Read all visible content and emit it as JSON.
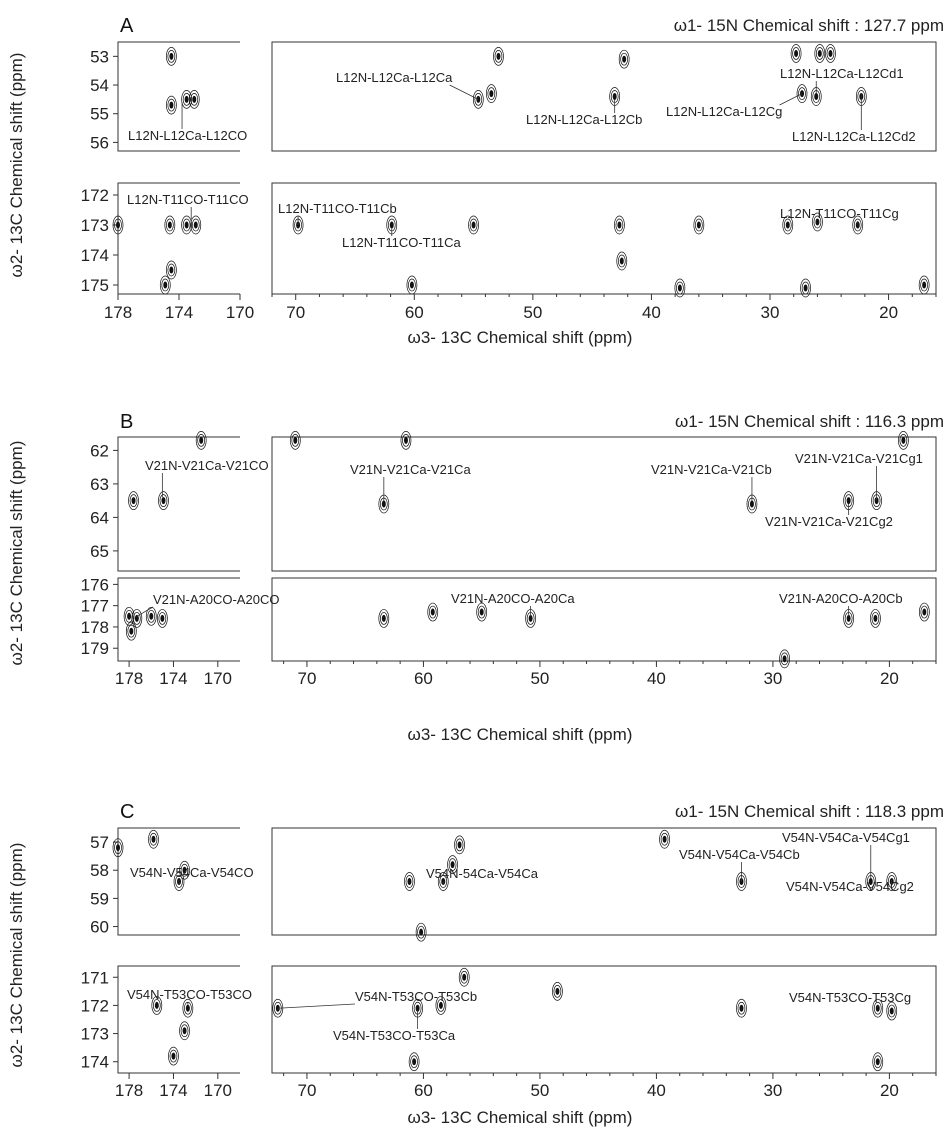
{
  "chart_data": [
    {
      "type": "contour",
      "panel": "A",
      "header": "ω1- 15N Chemical shift : 127.7 ppm",
      "xlabel": "ω3- 13C Chemical shift (ppm)",
      "ylabel": "ω2- 13C Chemical shift (ppm)",
      "x_left_range": [
        178,
        170
      ],
      "x_right_range": [
        72,
        16
      ],
      "x_left_ticks": [
        "178",
        "174",
        "170"
      ],
      "x_right_ticks": [
        "70",
        "60",
        "50",
        "40",
        "30",
        "20"
      ],
      "strips": [
        {
          "ylim": [
            52.5,
            56.3
          ],
          "yticks": [
            "53",
            "54",
            "55",
            "56"
          ],
          "peaks": [
            [
              174.5,
              53.0
            ],
            [
              174.5,
              54.7
            ],
            [
              173.5,
              54.5
            ],
            [
              173.0,
              54.5
            ],
            [
              52.9,
              53.0
            ],
            [
              42.3,
              53.1
            ],
            [
              27.8,
              52.9
            ],
            [
              25.8,
              52.9
            ],
            [
              24.9,
              52.9
            ],
            [
              54.6,
              54.5
            ],
            [
              43.1,
              54.4
            ],
            [
              26.1,
              54.4
            ],
            [
              27.3,
              54.3
            ],
            [
              22.3,
              54.4
            ],
            [
              53.5,
              54.3
            ]
          ],
          "annotations": [
            {
              "text": "L12N-L12Ca-L12CO",
              "x": 173.8,
              "y": 54.6
            },
            {
              "text": "L12N-L12Ca-L12Ca",
              "x": 54.6,
              "y": 54.5
            },
            {
              "text": "L12N-L12Ca-L12Cb",
              "x": 43.1,
              "y": 54.5
            },
            {
              "text": "L12N-L12Ca-L12Cg",
              "x": 27.3,
              "y": 54.3
            },
            {
              "text": "L12N-L12Ca-L12Cd1",
              "x": 26.1,
              "y": 54.3
            },
            {
              "text": "L12N-L12Ca-L12Cd2",
              "x": 22.3,
              "y": 54.3
            }
          ]
        },
        {
          "ylim": [
            171.6,
            175.3
          ],
          "yticks": [
            "172",
            "173",
            "174",
            "175"
          ],
          "peaks": [
            [
              173.5,
              173.0
            ],
            [
              172.9,
              173.0
            ],
            [
              174.6,
              173.0
            ],
            [
              174.5,
              174.5
            ],
            [
              174.9,
              175.0
            ],
            [
              178.0,
              173.0
            ],
            [
              69.8,
              173.0
            ],
            [
              61.9,
              173.0
            ],
            [
              55.0,
              173.0
            ],
            [
              36.0,
              173.0
            ],
            [
              26.0,
              172.9
            ],
            [
              22.6,
              173.0
            ],
            [
              28.5,
              173.0
            ],
            [
              42.7,
              173.0
            ],
            [
              60.2,
              175.0
            ],
            [
              27.0,
              175.1
            ],
            [
              17.0,
              175.0
            ],
            [
              37.6,
              175.1
            ],
            [
              42.5,
              174.2
            ]
          ],
          "annotations": [
            {
              "text": "L12N-T11CO-T11CO",
              "x": 173.2,
              "y": 172.8
            },
            {
              "text": "L12N-T11CO-T11Cb",
              "x": 69.8,
              "y": 173.0
            },
            {
              "text": "L12N-T11CO-T11Ca",
              "x": 61.9,
              "y": 173.1
            },
            {
              "text": "L12N-T11CO-T11Cg",
              "x": 22.6,
              "y": 173.0
            }
          ]
        }
      ]
    },
    {
      "type": "contour",
      "panel": "B",
      "header": "ω1- 15N Chemical shift : 116.3 ppm",
      "xlabel": "ω3- 13C Chemical shift (ppm)",
      "ylabel": "ω2- 13C Chemical shift (ppm)",
      "x_left_range": [
        179,
        168
      ],
      "x_right_range": [
        73,
        16
      ],
      "x_left_ticks": [
        "178",
        "174",
        "170"
      ],
      "x_right_ticks": [
        "70",
        "60",
        "50",
        "40",
        "30",
        "20"
      ],
      "strips": [
        {
          "ylim": [
            61.6,
            65.6
          ],
          "yticks": [
            "62",
            "63",
            "64",
            "65"
          ],
          "peaks": [
            [
              177.6,
              63.5
            ],
            [
              174.9,
              63.5
            ],
            [
              63.4,
              63.6
            ],
            [
              31.8,
              63.6
            ],
            [
              23.5,
              63.5
            ],
            [
              21.1,
              63.5
            ],
            [
              171.5,
              61.7
            ],
            [
              71.0,
              61.7
            ],
            [
              61.5,
              61.7
            ],
            [
              18.8,
              61.7
            ]
          ],
          "annotations": [
            {
              "text": "V21N-V21Ca-V21CO",
              "x": 175.0,
              "y": 63.4
            },
            {
              "text": "V21N-V21Ca-V21Ca",
              "x": 63.4,
              "y": 63.5
            },
            {
              "text": "V21N-V21Ca-V21Cb",
              "x": 31.8,
              "y": 63.5
            },
            {
              "text": "V21N-V21Ca-V21Cg1",
              "x": 21.1,
              "y": 63.5
            },
            {
              "text": "V21N-V21Ca-V21Cg2",
              "x": 23.5,
              "y": 63.6
            }
          ]
        },
        {
          "ylim": [
            175.7,
            179.6
          ],
          "yticks": [
            "176",
            "177",
            "178",
            "179"
          ],
          "peaks": [
            [
              178.0,
              177.5
            ],
            [
              177.3,
              177.6
            ],
            [
              176.0,
              177.5
            ],
            [
              175.0,
              177.6
            ],
            [
              177.8,
              178.2
            ],
            [
              55.0,
              177.3
            ],
            [
              50.8,
              177.6
            ],
            [
              23.5,
              177.6
            ],
            [
              17.0,
              177.3
            ],
            [
              63.4,
              177.6
            ],
            [
              59.2,
              177.3
            ],
            [
              21.2,
              177.6
            ],
            [
              29.0,
              179.5
            ]
          ],
          "annotations": [
            {
              "text": "V21N-A20CO-A20CO",
              "x": 177.3,
              "y": 177.5
            },
            {
              "text": "V21N-A20CO-A20Ca",
              "x": 50.8,
              "y": 177.5
            },
            {
              "text": "V21N-A20CO-A20Cb",
              "x": 23.5,
              "y": 177.5
            }
          ]
        }
      ]
    },
    {
      "type": "contour",
      "panel": "C",
      "header": "ω1- 15N Chemical shift : 118.3 ppm",
      "xlabel": "ω3- 13C Chemical shift (ppm)",
      "ylabel": "ω2- 13C Chemical shift (ppm)",
      "x_left_range": [
        179,
        168
      ],
      "x_right_range": [
        73,
        16
      ],
      "x_left_ticks": [
        "178",
        "174",
        "170"
      ],
      "x_right_ticks": [
        "70",
        "60",
        "50",
        "40",
        "30",
        "20"
      ],
      "strips": [
        {
          "ylim": [
            56.5,
            60.3
          ],
          "yticks": [
            "57",
            "58",
            "59",
            "60"
          ],
          "peaks": [
            [
              175.8,
              56.9
            ],
            [
              173.5,
              58.4
            ],
            [
              173.0,
              58.0
            ],
            [
              56.9,
              57.1
            ],
            [
              57.5,
              57.8
            ],
            [
              58.3,
              58.4
            ],
            [
              39.3,
              56.9
            ],
            [
              32.7,
              58.4
            ],
            [
              21.6,
              58.4
            ],
            [
              19.8,
              58.4
            ],
            [
              60.2,
              60.2
            ],
            [
              61.2,
              58.4
            ],
            [
              179.0,
              57.2
            ]
          ],
          "annotations": [
            {
              "text": "V54N-V54Ca-V54CO",
              "x": 173.5,
              "y": 58.5
            },
            {
              "text": "V54N-54Ca-V54Ca",
              "x": 58.3,
              "y": 58.5
            },
            {
              "text": "V54N-V54Ca-V54Cb",
              "x": 32.7,
              "y": 58.4
            },
            {
              "text": "V54N-V54Ca-V54Cg1",
              "x": 21.6,
              "y": 58.3
            },
            {
              "text": "V54N-V54Ca-V54Cg2",
              "x": 19.8,
              "y": 58.5
            }
          ]
        },
        {
          "ylim": [
            170.6,
            174.4
          ],
          "yticks": [
            "171",
            "172",
            "173",
            "174"
          ],
          "peaks": [
            [
              172.7,
              172.1
            ],
            [
              173.0,
              172.9
            ],
            [
              175.5,
              172.0
            ],
            [
              174.0,
              173.8
            ],
            [
              72.5,
              172.1
            ],
            [
              60.5,
              172.1
            ],
            [
              58.5,
              172.0
            ],
            [
              32.7,
              172.1
            ],
            [
              21.0,
              172.1
            ],
            [
              19.8,
              172.2
            ],
            [
              60.8,
              174.0
            ],
            [
              56.5,
              171.0
            ],
            [
              48.5,
              171.5
            ],
            [
              21.0,
              174.0
            ]
          ],
          "annotations": [
            {
              "text": "V54N-T53CO-T53CO",
              "x": 172.7,
              "y": 172.0
            },
            {
              "text": "V54N-T53CO-T53Cb",
              "x": 72.5,
              "y": 172.1
            },
            {
              "text": "V54N-T53CO-T53Ca",
              "x": 60.5,
              "y": 172.2
            },
            {
              "text": "V54N-T53CO-T53Cg",
              "x": 21.0,
              "y": 172.1
            }
          ]
        }
      ]
    }
  ]
}
